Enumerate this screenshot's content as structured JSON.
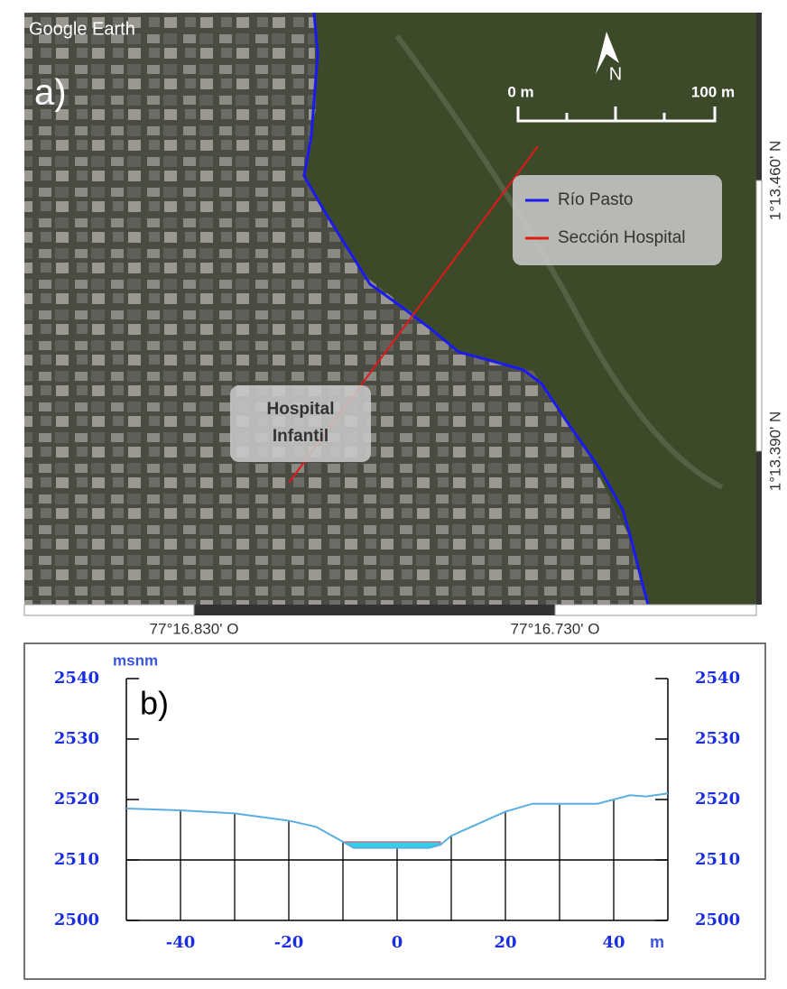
{
  "map": {
    "brand": "Google Earth",
    "panel": "a)",
    "north": "N",
    "scale_start": "0 m",
    "scale_end": "100 m",
    "legend": [
      "Río Pasto",
      "Sección Hospital"
    ],
    "label_lines": [
      "Hospital",
      "Infantil"
    ],
    "lat_labels": [
      "1°13.460' N",
      "1°13.390' N"
    ],
    "lon_labels": [
      "77°16.830' O",
      "77°16.730' O"
    ]
  },
  "chart_data": {
    "type": "profile",
    "panel": "b)",
    "y_label": "msnm",
    "x_label": "m",
    "profile": {
      "color": "#5aaee0",
      "x": [
        -50,
        -40,
        -30,
        -20,
        -15,
        -10,
        -8,
        0,
        6,
        8,
        10,
        20,
        25,
        30,
        37,
        40,
        43,
        46,
        50
      ],
      "values": [
        2518.5,
        2518.2,
        2517.7,
        2516.5,
        2515.5,
        2513,
        2512,
        2512,
        2512,
        2512.5,
        2514,
        2518,
        2519.3,
        2519.3,
        2519.3,
        2520,
        2520.7,
        2520.5,
        2521
      ]
    },
    "water": {
      "color": "#2fd0e8",
      "x": [
        -10,
        8
      ],
      "values": [
        2513,
        2513
      ]
    },
    "xlim": [
      -50,
      50
    ],
    "xticks": [
      -40,
      -20,
      0,
      20,
      40
    ],
    "vlines": [
      -40,
      -30,
      -20,
      -10,
      0,
      10,
      20,
      30,
      40
    ],
    "ylim": [
      2500,
      2540
    ],
    "yticks": [
      2500,
      2510,
      2520,
      2530,
      2540
    ],
    "y2lim": [
      2500,
      2540
    ],
    "y2ticks": [
      2500,
      2510,
      2520,
      2530,
      2540
    ],
    "grid_y": [
      2510
    ]
  }
}
